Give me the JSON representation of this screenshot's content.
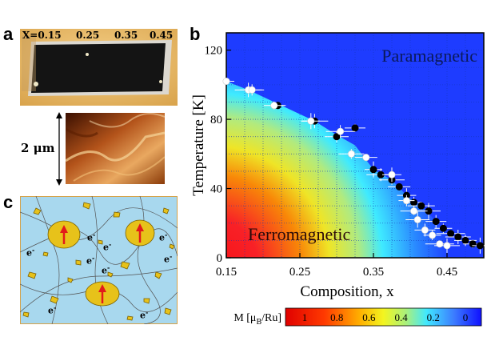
{
  "panel_labels": {
    "a": "a",
    "b": "b",
    "c": "c"
  },
  "panel_a": {
    "compositions": [
      "X=0.15",
      "0.25",
      "0.35",
      "0.45"
    ],
    "scale_label": "2 μm"
  },
  "panel_c": {
    "electron_label": "e",
    "electron_sup": "-"
  },
  "chart_data": {
    "type": "scatter",
    "title": "",
    "xlabel": "Composition, x",
    "ylabel": "Temperature [K]",
    "xlim": [
      0.15,
      0.5
    ],
    "ylim": [
      0,
      130
    ],
    "xticks": [
      "0.15",
      "0.25",
      "0.35",
      "0.45"
    ],
    "yticks": [
      "0",
      "40",
      "80",
      "120"
    ],
    "region_labels": {
      "upper": "Paramagnetic",
      "lower": "Ferromagnetic"
    },
    "colorbar": {
      "label": "M [μB/Ru]",
      "label_main": "M [μ",
      "label_sub": "B",
      "label_tail": "/Ru]",
      "ticks": [
        "1",
        "0.8",
        "0.6",
        "0.4",
        "0.2",
        "0"
      ]
    },
    "series": [
      {
        "name": "black points",
        "color": "#000000",
        "x": [
          0.22,
          0.27,
          0.3,
          0.325,
          0.35,
          0.36,
          0.375,
          0.385,
          0.395,
          0.405,
          0.415,
          0.425,
          0.435,
          0.445,
          0.455,
          0.465,
          0.475,
          0.485,
          0.495
        ],
        "y": [
          88,
          79,
          70,
          75,
          51,
          48,
          45,
          41,
          36,
          32,
          30,
          27,
          21,
          17,
          14,
          12,
          10,
          8,
          7
        ]
      },
      {
        "name": "white points",
        "color": "#ffffff",
        "x": [
          0.15,
          0.18,
          0.185,
          0.215,
          0.265,
          0.305,
          0.32,
          0.34,
          0.375,
          0.395,
          0.405,
          0.41,
          0.42,
          0.43,
          0.44,
          0.45
        ],
        "y": [
          102,
          97,
          97,
          88,
          79,
          73,
          60,
          58,
          48,
          33,
          27,
          22,
          16,
          13,
          8,
          7
        ]
      }
    ]
  }
}
